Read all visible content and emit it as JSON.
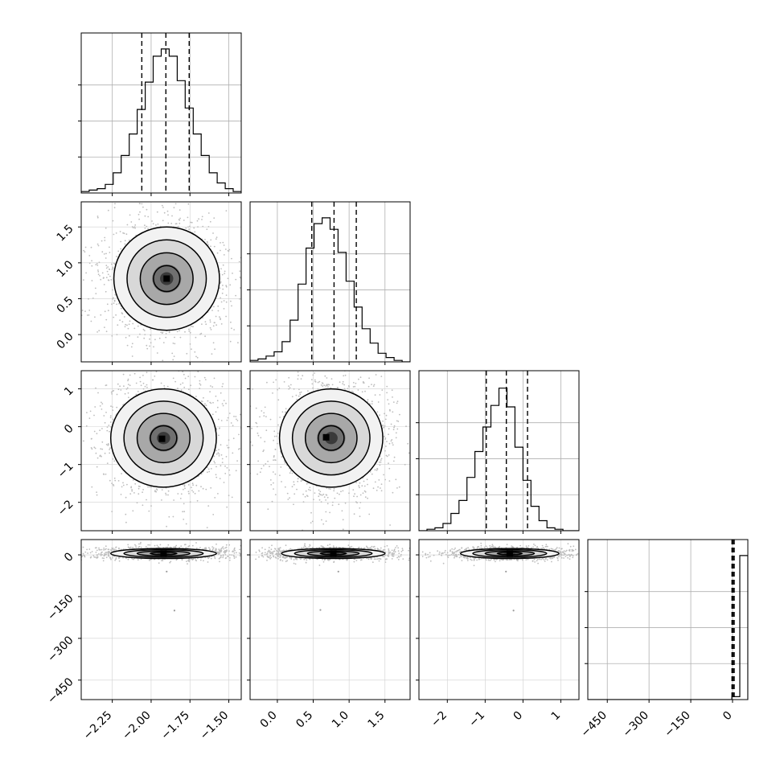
{
  "chart_data": {
    "type": "corner",
    "n_params": 4,
    "params": [
      {
        "range": [
          -2.45,
          -1.42
        ],
        "ticks": [
          -2.25,
          -2.0,
          -1.75,
          -1.5
        ],
        "tick_labels": [
          "−2.25",
          "−2.00",
          "−1.75",
          "−1.50"
        ]
      },
      {
        "range": [
          -0.38,
          1.85
        ],
        "ticks": [
          0.0,
          0.5,
          1.0,
          1.5
        ],
        "tick_labels": [
          "0.0",
          "0.5",
          "1.0",
          "1.5"
        ]
      },
      {
        "range": [
          -2.75,
          1.48
        ],
        "ticks": [
          -2,
          -1,
          0,
          1
        ],
        "tick_labels": [
          "−2",
          "−1",
          "0",
          "1"
        ]
      },
      {
        "range": [
          -520,
          55
        ],
        "ticks": [
          -450,
          -300,
          -150,
          0
        ],
        "tick_labels": [
          "−450",
          "−300",
          "−150",
          "0"
        ]
      }
    ],
    "grid": true,
    "diagonal_histograms": [
      {
        "bin_start": -2.45,
        "bin_width": 0.0515,
        "counts": [
          0.01,
          0.02,
          0.03,
          0.06,
          0.14,
          0.26,
          0.41,
          0.58,
          0.77,
          0.95,
          1.0,
          0.95,
          0.78,
          0.59,
          0.41,
          0.26,
          0.14,
          0.07,
          0.03,
          0.01
        ],
        "quantiles": [
          -2.06,
          -1.905,
          -1.755
        ]
      },
      {
        "bin_start": -0.38,
        "bin_width": 0.1115,
        "counts": [
          0.01,
          0.02,
          0.04,
          0.07,
          0.14,
          0.29,
          0.54,
          0.79,
          0.96,
          1.0,
          0.92,
          0.76,
          0.56,
          0.38,
          0.23,
          0.13,
          0.06,
          0.03,
          0.01,
          0.0
        ],
        "quantiles": [
          0.48,
          0.79,
          1.1
        ]
      },
      {
        "bin_start": -2.75,
        "bin_width": 0.2115,
        "counts": [
          0.0,
          0.01,
          0.02,
          0.05,
          0.12,
          0.21,
          0.37,
          0.55,
          0.72,
          0.87,
          0.99,
          0.86,
          0.58,
          0.35,
          0.17,
          0.07,
          0.02,
          0.01,
          0.0,
          0.0
        ],
        "quantiles": [
          -0.97,
          -0.44,
          0.12
        ]
      },
      {
        "bin_start": -520,
        "bin_width": 28.75,
        "counts": [
          0.0,
          0.0,
          0.0,
          0.0,
          0.0,
          0.0,
          0.0,
          0.0,
          0.0,
          0.0,
          0.0,
          0.0,
          0.0,
          0.0,
          0.0,
          0.0,
          0.0,
          0.0,
          0.02,
          1.0
        ],
        "quantiles": [
          -2,
          2,
          6
        ]
      }
    ],
    "scatter_panels": [
      {
        "x_param": 0,
        "y_param": 1,
        "mean": [
          -1.9,
          0.78
        ],
        "sd": [
          0.17,
          0.36
        ],
        "mode": [
          -1.9,
          0.78
        ],
        "contour_scale": [
          1.0,
          1.0
        ]
      },
      {
        "x_param": 0,
        "y_param": 2,
        "mean": [
          -1.92,
          -0.3
        ],
        "sd": [
          0.17,
          0.65
        ],
        "mode": [
          -1.93,
          -0.32
        ],
        "contour_scale": [
          1.0,
          1.0
        ]
      },
      {
        "x_param": 1,
        "y_param": 2,
        "mean": [
          0.75,
          -0.3
        ],
        "sd": [
          0.36,
          0.65
        ],
        "mode": [
          0.68,
          -0.28
        ],
        "contour_scale": [
          1.0,
          1.0
        ]
      },
      {
        "x_param": 0,
        "y_param": 3,
        "mean": [
          -1.92,
          5
        ],
        "sd": [
          0.17,
          9
        ],
        "mode": [
          -1.92,
          5
        ],
        "contour_scale": [
          1.0,
          1.0
        ]
      },
      {
        "x_param": 1,
        "y_param": 3,
        "mean": [
          0.78,
          5
        ],
        "sd": [
          0.36,
          9
        ],
        "mode": [
          0.78,
          5
        ],
        "contour_scale": [
          1.0,
          1.0
        ]
      },
      {
        "x_param": 2,
        "y_param": 3,
        "mean": [
          -0.35,
          5
        ],
        "sd": [
          0.65,
          9
        ],
        "mode": [
          -0.35,
          5
        ],
        "contour_scale": [
          1.0,
          1.0
        ]
      }
    ],
    "outliers": [
      {
        "x_param": 0,
        "y_param": 3,
        "x": -1.9,
        "y": -60
      },
      {
        "x_param": 0,
        "y_param": 3,
        "x": -1.85,
        "y": -200
      },
      {
        "x_param": 1,
        "y_param": 3,
        "x": 0.85,
        "y": -60
      },
      {
        "x_param": 1,
        "y_param": 3,
        "x": 0.6,
        "y": -198
      },
      {
        "x_param": 2,
        "y_param": 3,
        "x": -0.45,
        "y": -60
      },
      {
        "x_param": 2,
        "y_param": 3,
        "x": -0.25,
        "y": -200
      }
    ],
    "contour_levels_sigma": [
      0.5,
      1.0,
      1.5,
      2.0
    ]
  }
}
